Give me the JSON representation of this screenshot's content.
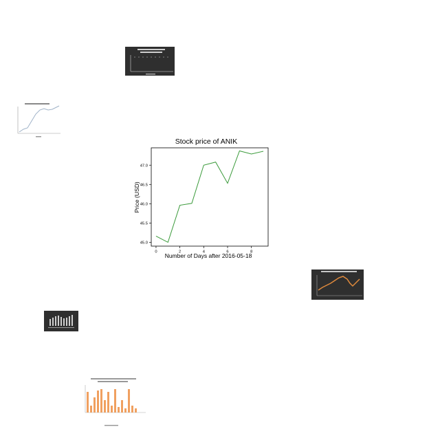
{
  "chart_data": [
    {
      "type": "line",
      "title": "Stock price of ANIK",
      "xlabel": "Number of Days after 2016-05-18",
      "ylabel": "Price (USD)",
      "x": [
        0,
        1,
        2,
        3,
        4,
        5,
        6,
        7,
        8,
        9
      ],
      "series": [
        {
          "values": [
            45.16,
            45.0,
            45.96,
            46.01,
            47.0,
            47.08,
            46.53,
            47.37,
            47.29,
            47.36
          ],
          "color": "#3a9a3a"
        }
      ],
      "xlim": [
        -0.4,
        9.4
      ],
      "ylim": [
        44.9,
        47.45
      ],
      "xticks": [
        0,
        2,
        4,
        6,
        8
      ],
      "yticks": [
        45.0,
        45.5,
        46.0,
        46.5,
        47.0
      ],
      "ytick_labels": [
        "45.0",
        "45.5",
        "46.0",
        "46.5",
        "47.0"
      ],
      "grid": false
    }
  ],
  "colors": {
    "line": "#3a9a3a",
    "thumb_dark_bg": "#2f2f2f",
    "thumb_orange": "#e08a3c",
    "thumb_bar_orange": "#f0a060",
    "thumb_light_line": "#9fb2c8"
  }
}
